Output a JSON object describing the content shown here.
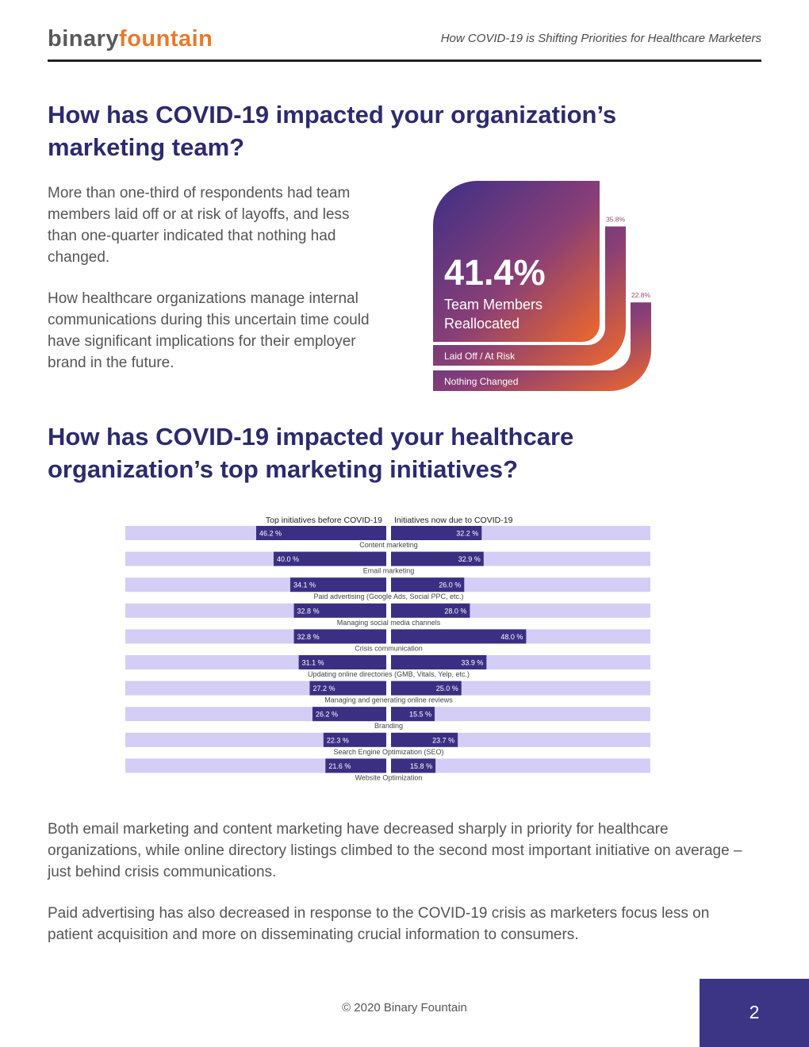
{
  "header": {
    "logo_part1": "binary",
    "logo_part2": "fountain",
    "title": "How COVID-19 is Shifting Priorities for Healthcare Marketers"
  },
  "section1": {
    "question": "How has COVID-19 impacted your organization’s marketing team?",
    "para1": "More than one-third of respondents had team members laid off or at risk of layoffs, and less than one-quarter indicated that nothing had changed.",
    "para2": "How healthcare organizations manage internal communications during this uncertain time could have significant implications for their employer brand in the future."
  },
  "section2": {
    "question": "How has COVID-19 impacted your healthcare organization’s top marketing initiatives?",
    "para1": "Both email marketing and content marketing have decreased sharply in priority for healthcare organizations, while online directory listings climbed to the second most important initiative on average – just behind crisis communications.",
    "para2": "Paid advertising has also decreased in response to the COVID-19 crisis as marketers focus less on patient acquisition and more on disseminating crucial information to consumers."
  },
  "chart_data": [
    {
      "type": "bar",
      "categories": [
        "Team Members Reallocated",
        "Laid Off / At Risk",
        "Nothing Changed"
      ],
      "values": [
        41.4,
        35.8,
        22.8
      ],
      "value_labels": [
        "41.4%",
        "35.8%",
        "22.8%"
      ],
      "label_line1": "Team Members",
      "label_line2": "Reallocated",
      "colors": {
        "start": "#3d2f86",
        "end": "#f0692a"
      }
    },
    {
      "type": "bar",
      "series_titles": [
        "Top initiatives before COVID-19",
        "Initiatives now due to COVID-19"
      ],
      "categories": [
        "Content marketing",
        "Email marketing",
        "Paid advertising (Google Ads, Social PPC, etc.)",
        "Managing social media channels",
        "Crisis communication",
        "Updating online directories (GMB, Vitals, Yelp, etc.)",
        "Managing and generating online reviews",
        "Branding",
        "Search Engine Optimization (SEO)",
        "Website Optimization"
      ],
      "series": [
        {
          "values": [
            46.2,
            40.0,
            34.1,
            32.8,
            32.8,
            31.1,
            27.2,
            26.2,
            22.3,
            21.6
          ],
          "labels": [
            "46.2 %",
            "40.0 %",
            "34.1 %",
            "32.8 %",
            "32.8 %",
            "31.1 %",
            "27.2 %",
            "26.2 %",
            "22.3 %",
            "21.6 %"
          ]
        },
        {
          "values": [
            32.2,
            32.9,
            26.0,
            28.0,
            48.0,
            33.9,
            25.0,
            15.5,
            23.7,
            15.8
          ],
          "labels": [
            "32.2 %",
            "32.9 %",
            "26.0 %",
            "28.0 %",
            "48.0 %",
            "33.9 %",
            "25.0 %",
            "15.5 %",
            "23.7 %",
            "15.8 %"
          ]
        }
      ],
      "colors": {
        "bar": "#3b2f83",
        "track": "#d4cdf6"
      }
    }
  ],
  "footer": {
    "copyright": "© 2020 Binary Fountain",
    "page_number": "2"
  }
}
